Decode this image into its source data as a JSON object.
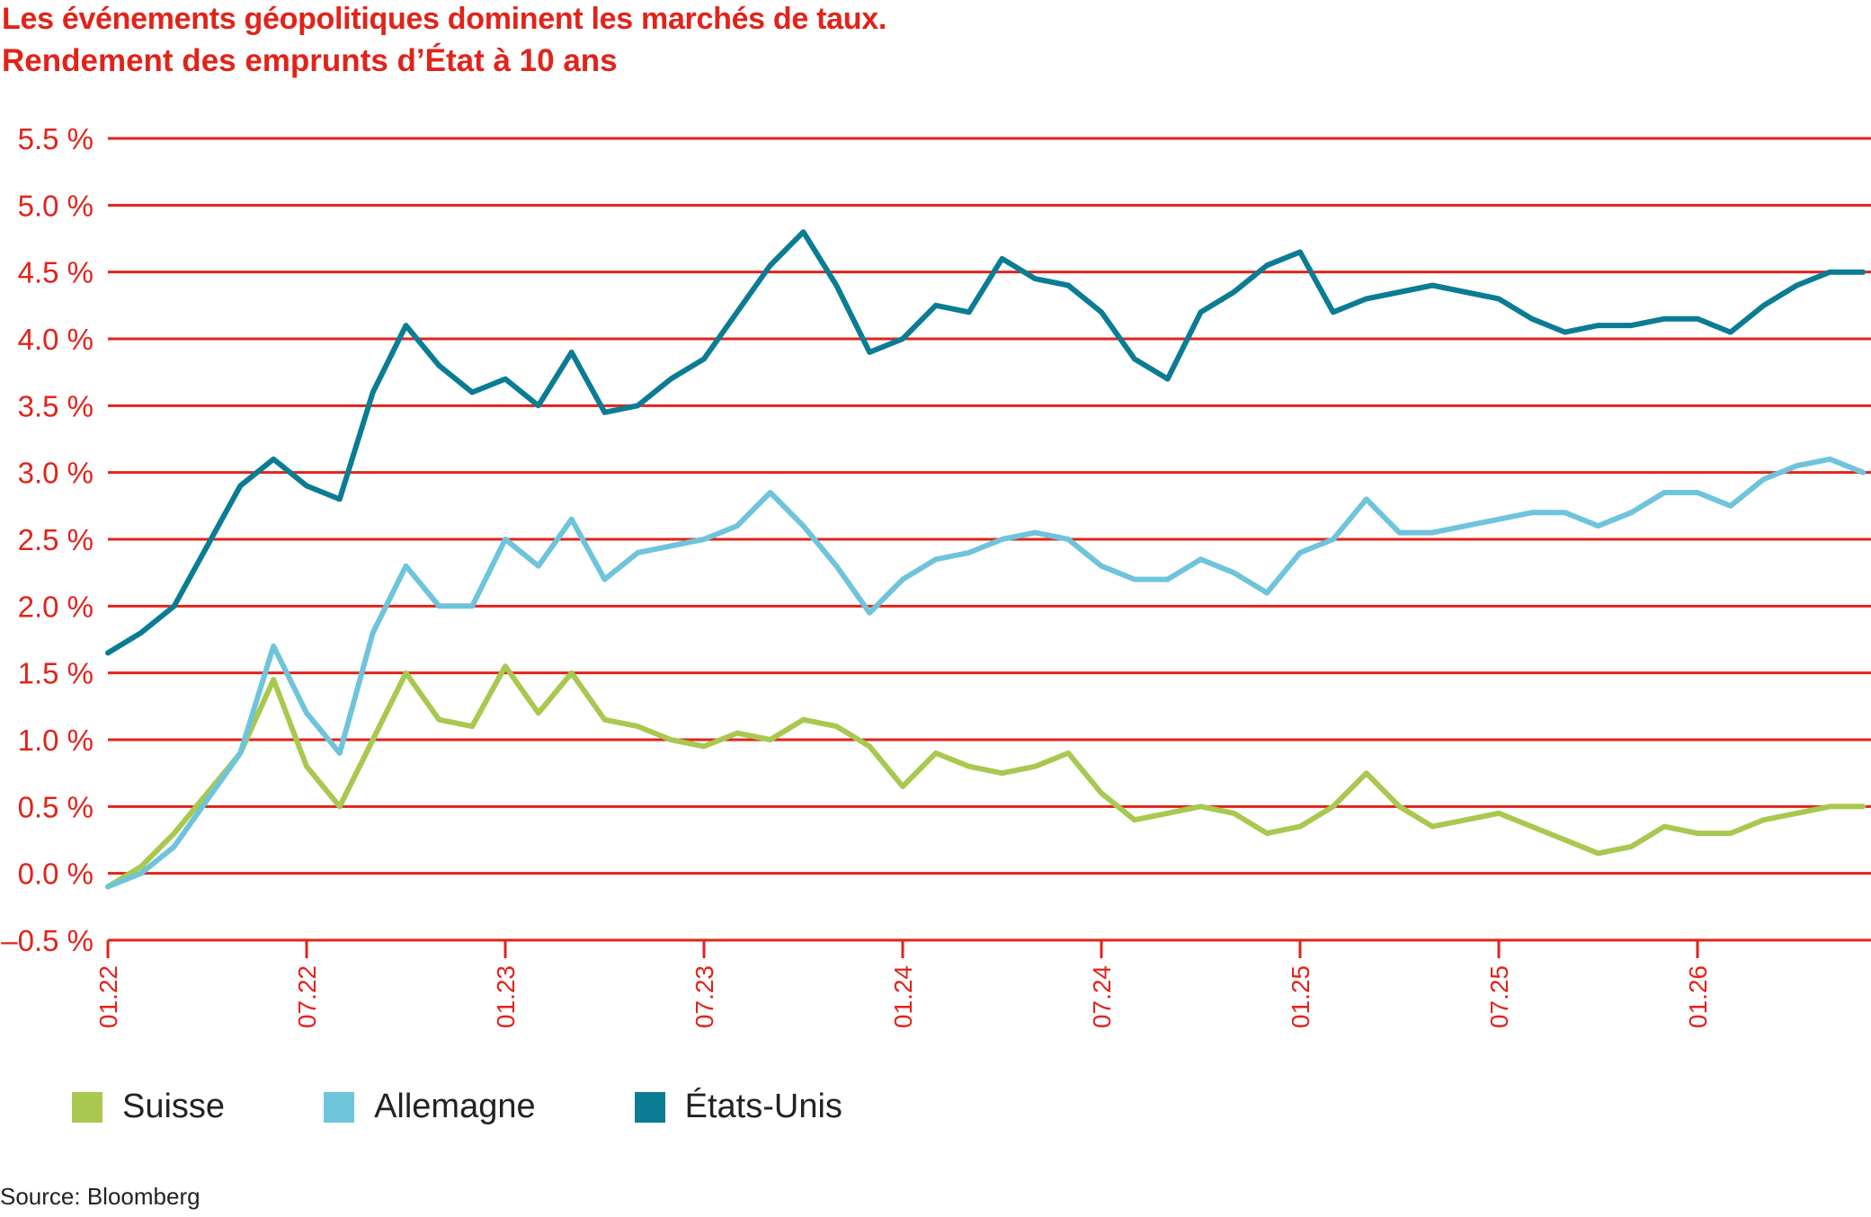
{
  "chart_data": {
    "type": "line",
    "title": "Les événements géopolitiques dominent les marchés de taux.",
    "subtitle": "Rendement des emprunts d’État à 10 ans",
    "ylim": [
      -0.5,
      5.5
    ],
    "y_ticks": [
      -0.5,
      0.0,
      0.5,
      1.0,
      1.5,
      2.0,
      2.5,
      3.0,
      3.5,
      4.0,
      4.5,
      5.0,
      5.5
    ],
    "y_tick_labels": [
      "–0.5 %",
      "0.0 %",
      "0.5 %",
      "1.0 %",
      "1.5 %",
      "2.0 %",
      "2.5 %",
      "3.0 %",
      "3.5 %",
      "4.0 %",
      "4.5 %",
      "5.0 %",
      "5.5 %"
    ],
    "x_ticks": [
      "2022-01",
      "2022-07",
      "2023-01",
      "2023-07",
      "2024-01",
      "2024-07",
      "2025-01",
      "2025-07",
      "2026-01"
    ],
    "x_tick_labels": [
      "01.22",
      "07.22",
      "01.23",
      "07.23",
      "01.24",
      "07.24",
      "01.25",
      "07.25",
      "01.26"
    ],
    "xlim": [
      "2022-01",
      "2026-06"
    ],
    "grid": "horizontal",
    "legend_position": "bottom-left",
    "x": [
      "2022-01",
      "2022-02",
      "2022-03",
      "2022-04",
      "2022-05",
      "2022-06",
      "2022-07",
      "2022-08",
      "2022-09",
      "2022-10",
      "2022-11",
      "2022-12",
      "2023-01",
      "2023-02",
      "2023-03",
      "2023-04",
      "2023-05",
      "2023-06",
      "2023-07",
      "2023-08",
      "2023-09",
      "2023-10",
      "2023-11",
      "2023-12",
      "2024-01",
      "2024-02",
      "2024-03",
      "2024-04",
      "2024-05",
      "2024-06",
      "2024-07",
      "2024-08",
      "2024-09",
      "2024-10",
      "2024-11",
      "2024-12",
      "2025-01",
      "2025-02",
      "2025-03",
      "2025-04",
      "2025-05",
      "2025-06",
      "2025-07",
      "2025-08",
      "2025-09",
      "2025-10",
      "2025-11",
      "2025-12",
      "2026-01",
      "2026-02",
      "2026-03",
      "2026-04",
      "2026-05",
      "2026-06"
    ],
    "series": [
      {
        "name": "Suisse",
        "color": "#a8c84f",
        "values": [
          -0.1,
          0.05,
          0.3,
          0.6,
          0.9,
          1.45,
          0.8,
          0.5,
          1.0,
          1.5,
          1.15,
          1.1,
          1.55,
          1.2,
          1.5,
          1.15,
          1.1,
          1.0,
          0.95,
          1.05,
          1.0,
          1.15,
          1.1,
          0.95,
          0.65,
          0.9,
          0.8,
          0.75,
          0.8,
          0.9,
          0.6,
          0.4,
          0.45,
          0.5,
          0.45,
          0.3,
          0.35,
          0.5,
          0.75,
          0.5,
          0.35,
          0.4,
          0.45,
          0.35,
          0.25,
          0.15,
          0.2,
          0.35,
          0.3,
          0.3,
          0.4,
          0.45,
          0.5,
          0.5
        ]
      },
      {
        "name": "Allemagne",
        "color": "#6ec4db",
        "values": [
          -0.1,
          0.0,
          0.2,
          0.55,
          0.9,
          1.7,
          1.2,
          0.9,
          1.8,
          2.3,
          2.0,
          2.0,
          2.5,
          2.3,
          2.65,
          2.2,
          2.4,
          2.45,
          2.5,
          2.6,
          2.85,
          2.6,
          2.3,
          1.95,
          2.2,
          2.35,
          2.4,
          2.5,
          2.55,
          2.5,
          2.3,
          2.2,
          2.2,
          2.35,
          2.25,
          2.1,
          2.4,
          2.5,
          2.8,
          2.55,
          2.55,
          2.6,
          2.65,
          2.7,
          2.7,
          2.6,
          2.7,
          2.85,
          2.85,
          2.75,
          2.95,
          3.05,
          3.1,
          3.0
        ]
      },
      {
        "name": "États-Unis",
        "color": "#0a7c93",
        "values": [
          1.65,
          1.8,
          2.0,
          2.45,
          2.9,
          3.1,
          2.9,
          2.8,
          3.6,
          4.1,
          3.8,
          3.6,
          3.7,
          3.5,
          3.9,
          3.45,
          3.5,
          3.7,
          3.85,
          4.2,
          4.55,
          4.8,
          4.4,
          3.9,
          4.0,
          4.25,
          4.2,
          4.6,
          4.45,
          4.4,
          4.2,
          3.85,
          3.7,
          4.2,
          4.35,
          4.55,
          4.65,
          4.2,
          4.3,
          4.35,
          4.4,
          4.35,
          4.3,
          4.15,
          4.05,
          4.1,
          4.1,
          4.15,
          4.15,
          4.05,
          4.25,
          4.4,
          4.5,
          4.5
        ]
      }
    ],
    "source": "Source: Bloomberg"
  }
}
